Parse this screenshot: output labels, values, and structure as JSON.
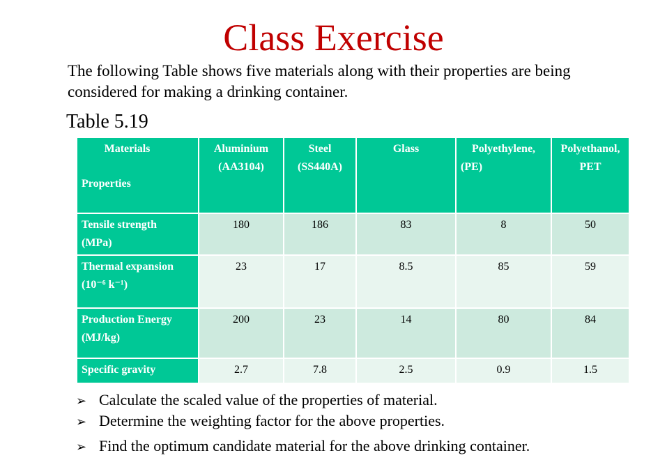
{
  "title": "Class Exercise",
  "intro": "The following Table shows five materials along with their properties are being considered for making a drinking container.",
  "caption": "Table 5.19",
  "table": {
    "corner_top": "Materials",
    "corner_bottom": "Properties",
    "columns": [
      {
        "line1": "Aluminium",
        "line2": "(AA3104)"
      },
      {
        "line1": "Steel",
        "line2": "(SS440A)"
      },
      {
        "line1": "Glass",
        "line2": ""
      },
      {
        "line1": "Polyethylene,",
        "line2": "(PE)"
      },
      {
        "line1": "Polyethanol,",
        "line2": "PET"
      }
    ],
    "rows": [
      {
        "line1": "Tensile strength",
        "line2": "(MPa)",
        "values": [
          "180",
          "186",
          "83",
          "8",
          "50"
        ]
      },
      {
        "line1": "Thermal expansion",
        "line2": "(10⁻⁶ k⁻¹)",
        "values": [
          "23",
          "17",
          "8.5",
          "85",
          "59"
        ]
      },
      {
        "line1": "Production Energy",
        "line2": "(MJ/kg)",
        "values": [
          "200",
          "23",
          "14",
          "80",
          "84"
        ]
      },
      {
        "line1": "Specific gravity",
        "line2": "",
        "values": [
          "2.7",
          "7.8",
          "2.5",
          "0.9",
          "1.5"
        ]
      }
    ]
  },
  "bullet_glyph": "➢",
  "bullets": [
    "Calculate the scaled value of the properties of material.",
    "Determine the weighting factor for the above properties.",
    "Find the optimum candidate material for the above drinking container."
  ]
}
